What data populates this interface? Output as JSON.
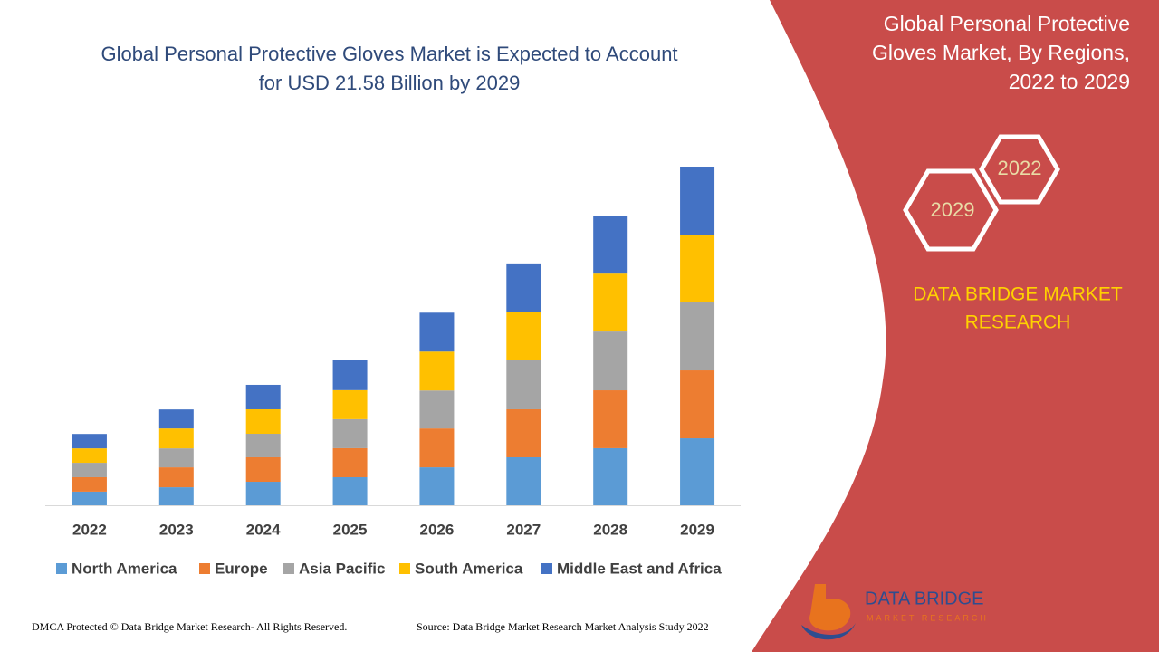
{
  "chart_data": {
    "type": "bar",
    "stacked": true,
    "title": "Global Personal Protective Gloves Market is Expected to Account for USD 21.58 Billion by 2029",
    "categories": [
      "2022",
      "2023",
      "2024",
      "2025",
      "2026",
      "2027",
      "2028",
      "2029"
    ],
    "series": [
      {
        "name": "North America",
        "color": "#5b9bd5",
        "values": [
          0.87,
          1.15,
          1.5,
          1.79,
          2.42,
          3.06,
          3.64,
          4.27
        ]
      },
      {
        "name": "Europe",
        "color": "#ed7d31",
        "values": [
          0.92,
          1.27,
          1.56,
          1.85,
          2.48,
          3.06,
          3.69,
          4.33
        ]
      },
      {
        "name": "Asia Pacific",
        "color": "#a5a5a5",
        "values": [
          0.92,
          1.21,
          1.5,
          1.85,
          2.42,
          3.12,
          3.75,
          4.33
        ]
      },
      {
        "name": "South America",
        "color": "#ffc000",
        "values": [
          0.92,
          1.27,
          1.56,
          1.85,
          2.48,
          3.06,
          3.69,
          4.33
        ]
      },
      {
        "name": "Middle East and Africa",
        "color": "#4472c4",
        "values": [
          0.92,
          1.21,
          1.56,
          1.9,
          2.48,
          3.12,
          3.69,
          4.33
        ]
      }
    ],
    "legend": "bottom"
  },
  "panel": {
    "title": "Global Personal Protective Gloves Market, By Regions, 2022 to 2029",
    "hex_start": "2022",
    "hex_end": "2029",
    "brand_line1": "DATA BRIDGE MARKET",
    "brand_line2": "RESEARCH"
  },
  "footer": {
    "copyright": "DMCA Protected © Data Bridge Market Research- All Rights Reserved.",
    "source": "Source: Data Bridge Market Research Market Analysis Study 2022"
  },
  "logo": {
    "name": "DATA BRIDGE",
    "tagline": "MARKET RESEARCH"
  }
}
